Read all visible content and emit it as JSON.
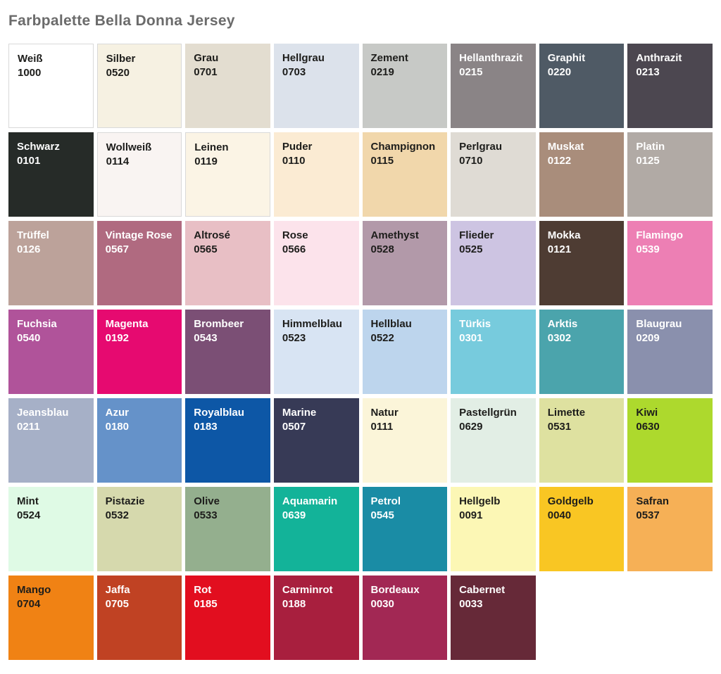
{
  "title": "Farbpalette Bella Donna Jersey",
  "colors": {
    "page_background": "#ffffff",
    "title_text": "#6b6b6b",
    "label_dark": "#1d1d1b",
    "label_light": "#ffffff",
    "light_cell_border": "#d9d9d9"
  },
  "swatches": [
    {
      "name": "Weiß",
      "code": "1000",
      "hex": "#ffffff",
      "text": "dark",
      "border": true
    },
    {
      "name": "Silber",
      "code": "0520",
      "hex": "#f6f1e2",
      "text": "dark",
      "border": true
    },
    {
      "name": "Grau",
      "code": "0701",
      "hex": "#e3ddd0",
      "text": "dark",
      "border": false
    },
    {
      "name": "Hellgrau",
      "code": "0703",
      "hex": "#dce2eb",
      "text": "dark",
      "border": false
    },
    {
      "name": "Zement",
      "code": "0219",
      "hex": "#c7c9c6",
      "text": "dark",
      "border": false
    },
    {
      "name": "Hellanthrazit",
      "code": "0215",
      "hex": "#8a8486",
      "text": "light",
      "border": false
    },
    {
      "name": "Graphit",
      "code": "0220",
      "hex": "#4f5a65",
      "text": "light",
      "border": false
    },
    {
      "name": "Anthrazit",
      "code": "0213",
      "hex": "#4c4750",
      "text": "light",
      "border": false
    },
    {
      "name": "Schwarz",
      "code": "0101",
      "hex": "#262b28",
      "text": "light",
      "border": false
    },
    {
      "name": "Wollweiß",
      "code": "0114",
      "hex": "#f9f4f2",
      "text": "dark",
      "border": true
    },
    {
      "name": "Leinen",
      "code": "0119",
      "hex": "#fbf4e5",
      "text": "dark",
      "border": true
    },
    {
      "name": "Puder",
      "code": "0110",
      "hex": "#fbebd3",
      "text": "dark",
      "border": false
    },
    {
      "name": "Champignon",
      "code": "0115",
      "hex": "#f1d7ab",
      "text": "dark",
      "border": false
    },
    {
      "name": "Perlgrau",
      "code": "0710",
      "hex": "#dfdbd4",
      "text": "dark",
      "border": false
    },
    {
      "name": "Muskat",
      "code": "0122",
      "hex": "#a98d7b",
      "text": "light",
      "border": false
    },
    {
      "name": "Platin",
      "code": "0125",
      "hex": "#b1aaa5",
      "text": "light",
      "border": false
    },
    {
      "name": "Trüffel",
      "code": "0126",
      "hex": "#bca29a",
      "text": "light",
      "border": false
    },
    {
      "name": "Vintage Rose",
      "code": "0567",
      "hex": "#b06a80",
      "text": "light",
      "border": false
    },
    {
      "name": "Altrosé",
      "code": "0565",
      "hex": "#e8bfc5",
      "text": "dark",
      "border": false
    },
    {
      "name": "Rose",
      "code": "0566",
      "hex": "#fce3eb",
      "text": "dark",
      "border": false
    },
    {
      "name": "Amethyst",
      "code": "0528",
      "hex": "#b299a9",
      "text": "dark",
      "border": false
    },
    {
      "name": "Flieder",
      "code": "0525",
      "hex": "#cdc4e2",
      "text": "dark",
      "border": false
    },
    {
      "name": "Mokka",
      "code": "0121",
      "hex": "#4e3c33",
      "text": "light",
      "border": false
    },
    {
      "name": "Flamingo",
      "code": "0539",
      "hex": "#ed7fb4",
      "text": "light",
      "border": false
    },
    {
      "name": "Fuchsia",
      "code": "0540",
      "hex": "#b0539a",
      "text": "light",
      "border": false
    },
    {
      "name": "Magenta",
      "code": "0192",
      "hex": "#e60a70",
      "text": "light",
      "border": false
    },
    {
      "name": "Brombeer",
      "code": "0543",
      "hex": "#7b4f75",
      "text": "light",
      "border": false
    },
    {
      "name": "Himmelblau",
      "code": "0523",
      "hex": "#d8e4f3",
      "text": "dark",
      "border": false
    },
    {
      "name": "Hellblau",
      "code": "0522",
      "hex": "#bdd5ed",
      "text": "dark",
      "border": false
    },
    {
      "name": "Türkis",
      "code": "0301",
      "hex": "#77cbdd",
      "text": "light",
      "border": false
    },
    {
      "name": "Arktis",
      "code": "0302",
      "hex": "#4ba4ac",
      "text": "light",
      "border": false
    },
    {
      "name": "Blaugrau",
      "code": "0209",
      "hex": "#8a90ad",
      "text": "light",
      "border": false
    },
    {
      "name": "Jeansblau",
      "code": "0211",
      "hex": "#a6b0c7",
      "text": "light",
      "border": false
    },
    {
      "name": "Azur",
      "code": "0180",
      "hex": "#6592c9",
      "text": "light",
      "border": false
    },
    {
      "name": "Royalblau",
      "code": "0183",
      "hex": "#0d57a6",
      "text": "light",
      "border": false
    },
    {
      "name": "Marine",
      "code": "0507",
      "hex": "#373a56",
      "text": "light",
      "border": false
    },
    {
      "name": "Natur",
      "code": "0111",
      "hex": "#fbf5d9",
      "text": "dark",
      "border": false
    },
    {
      "name": "Pastellgrün",
      "code": "0629",
      "hex": "#e2eee5",
      "text": "dark",
      "border": false
    },
    {
      "name": "Limette",
      "code": "0531",
      "hex": "#dee1a0",
      "text": "dark",
      "border": false
    },
    {
      "name": "Kiwi",
      "code": "0630",
      "hex": "#add92d",
      "text": "dark",
      "border": false
    },
    {
      "name": "Mint",
      "code": "0524",
      "hex": "#dffae5",
      "text": "dark",
      "border": false
    },
    {
      "name": "Pistazie",
      "code": "0532",
      "hex": "#d6d9ad",
      "text": "dark",
      "border": false
    },
    {
      "name": "Olive",
      "code": "0533",
      "hex": "#94af8e",
      "text": "dark",
      "border": false
    },
    {
      "name": "Aquamarin",
      "code": "0639",
      "hex": "#13b399",
      "text": "light",
      "border": false
    },
    {
      "name": "Petrol",
      "code": "0545",
      "hex": "#1a8ca5",
      "text": "light",
      "border": false
    },
    {
      "name": "Hellgelb",
      "code": "0091",
      "hex": "#fcf7b5",
      "text": "dark",
      "border": false
    },
    {
      "name": "Goldgelb",
      "code": "0040",
      "hex": "#f9c623",
      "text": "dark",
      "border": false
    },
    {
      "name": "Safran",
      "code": "0537",
      "hex": "#f6b056",
      "text": "dark",
      "border": false
    },
    {
      "name": "Mango",
      "code": "0704",
      "hex": "#f08214",
      "text": "dark",
      "border": false
    },
    {
      "name": "Jaffa",
      "code": "0705",
      "hex": "#c04223",
      "text": "light",
      "border": false
    },
    {
      "name": "Rot",
      "code": "0185",
      "hex": "#e20e1f",
      "text": "light",
      "border": false
    },
    {
      "name": "Carminrot",
      "code": "0188",
      "hex": "#a81f3e",
      "text": "light",
      "border": false
    },
    {
      "name": "Bordeaux",
      "code": "0030",
      "hex": "#a22854",
      "text": "light",
      "border": false
    },
    {
      "name": "Cabernet",
      "code": "0033",
      "hex": "#662938",
      "text": "light",
      "border": false
    }
  ]
}
